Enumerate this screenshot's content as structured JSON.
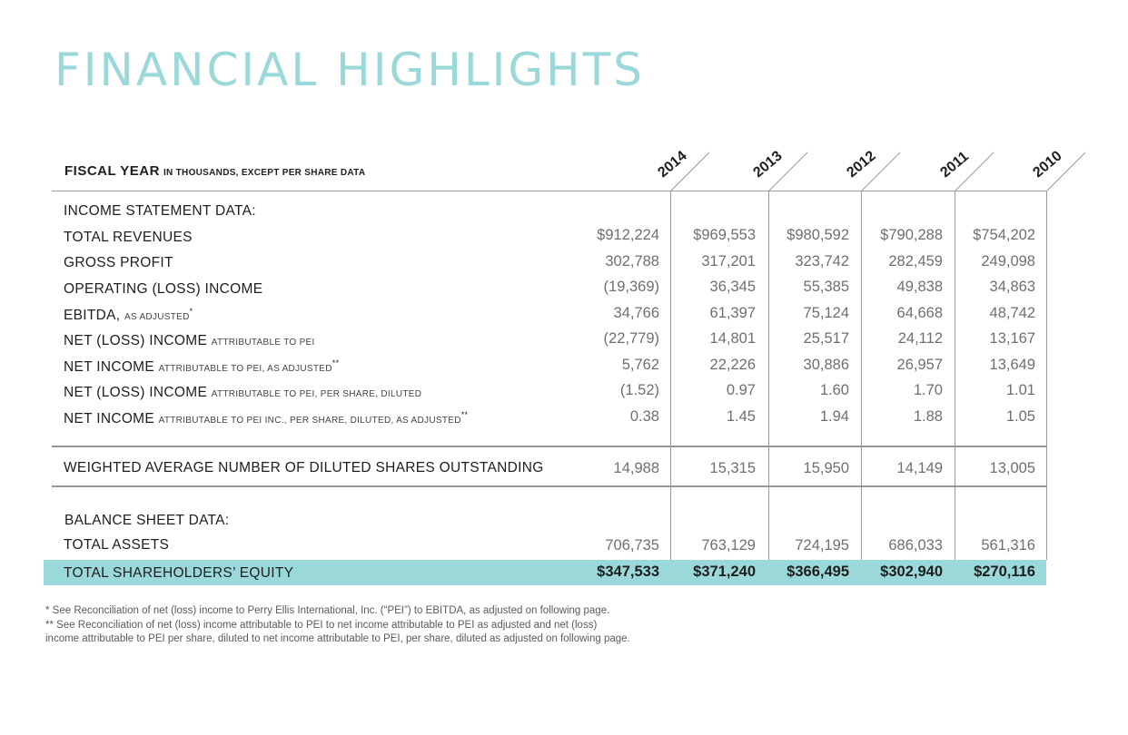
{
  "title": "FINANCIAL HIGHLIGHTS",
  "fiscal_year_label": "FISCAL YEAR",
  "fiscal_year_note": "IN THOUSANDS, EXCEPT PER SHARE DATA",
  "years": [
    "2014",
    "2013",
    "2012",
    "2011",
    "2010"
  ],
  "sections": {
    "income": "INCOME STATEMENT DATA:",
    "balance": "BALANCE SHEET DATA:"
  },
  "rows": [
    {
      "label": "TOTAL REVENUES",
      "qualifier": "",
      "mark": "",
      "values": [
        "$912,224",
        "$969,553",
        "$980,592",
        "$790,288",
        "$754,202"
      ]
    },
    {
      "label": "GROSS PROFIT",
      "qualifier": "",
      "mark": "",
      "values": [
        "302,788",
        "317,201",
        "323,742",
        "282,459",
        "249,098"
      ]
    },
    {
      "label": "OPERATING (LOSS) INCOME",
      "qualifier": "",
      "mark": "",
      "values": [
        "(19,369)",
        "36,345",
        "55,385",
        "49,838",
        "34,863"
      ]
    },
    {
      "label": "EBITDA,",
      "qualifier": "AS ADJUSTED",
      "mark": "*",
      "values": [
        "34,766",
        "61,397",
        "75,124",
        "64,668",
        "48,742"
      ]
    },
    {
      "label": "NET (LOSS) INCOME",
      "qualifier": "ATTRIBUTABLE TO PEI",
      "mark": "",
      "values": [
        "(22,779)",
        "14,801",
        "25,517",
        "24,112",
        "13,167"
      ]
    },
    {
      "label": "NET INCOME",
      "qualifier": "ATTRIBUTABLE TO PEI, AS ADJUSTED",
      "mark": "**",
      "values": [
        "5,762",
        "22,226",
        "30,886",
        "26,957",
        "13,649"
      ]
    },
    {
      "label": "NET (LOSS) INCOME",
      "qualifier": "ATTRIBUTABLE TO PEI, PER SHARE, DILUTED",
      "mark": "",
      "values": [
        "(1.52)",
        "0.97",
        "1.60",
        "1.70",
        "1.01"
      ]
    },
    {
      "label": "NET INCOME",
      "qualifier": "ATTRIBUTABLE TO PEI INC., PER SHARE, DILUTED, AS ADJUSTED",
      "mark": "**",
      "values": [
        "0.38",
        "1.45",
        "1.94",
        "1.88",
        "1.05"
      ]
    }
  ],
  "shares_row": {
    "label": "WEIGHTED AVERAGE NUMBER OF DILUTED SHARES OUTSTANDING",
    "values": [
      "14,988",
      "15,315",
      "15,950",
      "14,149",
      "13,005"
    ]
  },
  "assets_row": {
    "label": "TOTAL ASSETS",
    "values": [
      "706,735",
      "763,129",
      "724,195",
      "686,033",
      "561,316"
    ]
  },
  "equity_row": {
    "label": "TOTAL SHAREHOLDERS’ EQUITY",
    "values": [
      "$347,533",
      "$371,240",
      "$366,495",
      "$302,940",
      "$270,116"
    ]
  },
  "footnotes": [
    "* See Reconciliation of net (loss) income to Perry Ellis International, Inc. (“PEI”) to EBITDA, as adjusted on following page.",
    "** See Reconciliation of net (loss) income attributable to PEI to net income attributable to PEI as adjusted and net (loss)",
    "income attributable to PEI per share, diluted to net income attributable to PEI, per share, diluted as adjusted on following page."
  ],
  "colors": {
    "accent": "#9ad8d9",
    "text": "#1e1e1e",
    "value": "#6f6f6f"
  }
}
